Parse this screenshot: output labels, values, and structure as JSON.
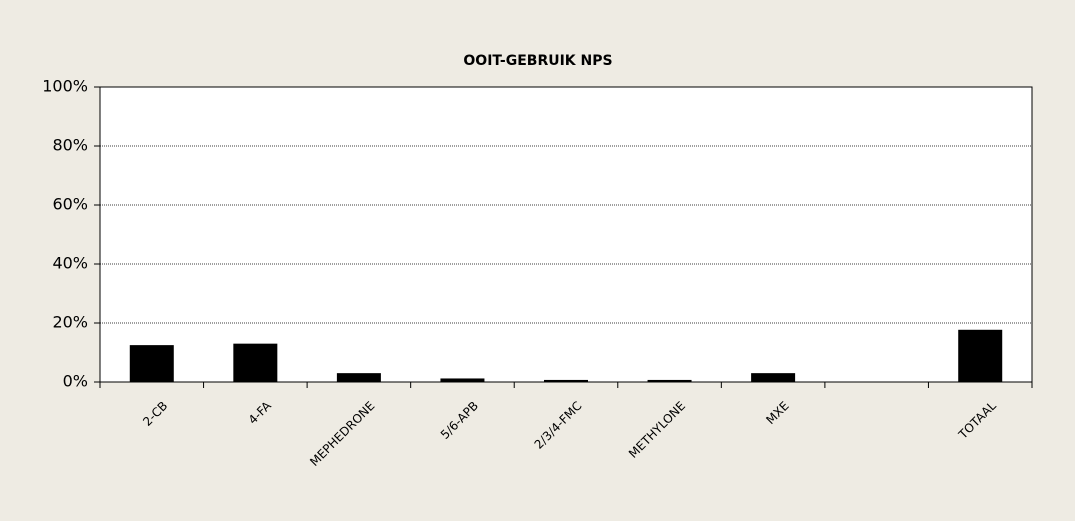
{
  "chart_data": {
    "type": "bar",
    "title": "OOIT-GEBRUIK NPS",
    "categories": [
      "2-CB",
      "4-FA",
      "MEPHEDRONE",
      "5/6-APB",
      "2/3/4-FMC",
      "METHYLONE",
      "MXE",
      null,
      "TOTAAL"
    ],
    "values": [
      12.5,
      13,
      3,
      1.2,
      0.7,
      0.7,
      3,
      null,
      17.7
    ],
    "color": "#000000",
    "ylim": [
      0,
      100
    ],
    "yticks": [
      {
        "value": 0,
        "label": "0%"
      },
      {
        "value": 20,
        "label": "20%"
      },
      {
        "value": 40,
        "label": "40%"
      },
      {
        "value": 60,
        "label": "60%"
      },
      {
        "value": 80,
        "label": "80%"
      },
      {
        "value": 100,
        "label": "100%"
      }
    ],
    "grid": true
  }
}
